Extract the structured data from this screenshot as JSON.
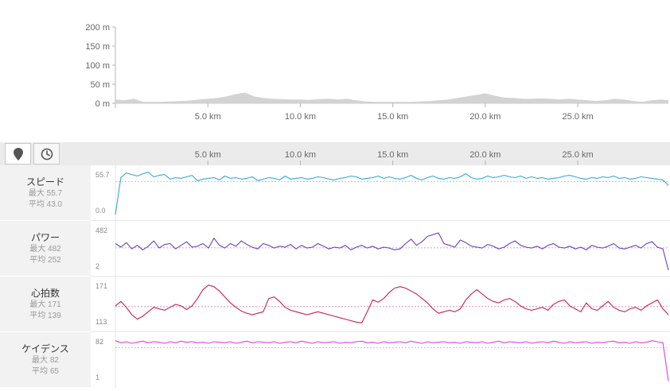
{
  "chart_data": [
    {
      "type": "area",
      "ylabel": "",
      "xlabel": "",
      "y_tick_labels": [
        "200 m",
        "150 m",
        "100 m",
        "50 m",
        "0 m"
      ],
      "y_ticks": [
        200,
        150,
        100,
        50,
        0
      ],
      "ylim": [
        0,
        200
      ],
      "x_tick_labels": [
        "5.0 km",
        "10.0 km",
        "15.0 km",
        "20.0 km",
        "25.0 km"
      ],
      "x_ticks": [
        5,
        10,
        15,
        20,
        25
      ],
      "xlim": [
        0,
        29.9
      ],
      "x": [
        0,
        0.5,
        1,
        1.5,
        2,
        2.5,
        3,
        3.5,
        4,
        4.5,
        5,
        5.5,
        6,
        6.5,
        7,
        7.5,
        8,
        8.5,
        9,
        9.5,
        10,
        10.5,
        11,
        11.5,
        12,
        12.5,
        13,
        13.5,
        14,
        14.5,
        15,
        15.5,
        16,
        16.5,
        17,
        17.5,
        18,
        18.5,
        19,
        19.5,
        20,
        20.5,
        21,
        21.5,
        22,
        22.5,
        23,
        23.5,
        24,
        24.5,
        25,
        25.5,
        26,
        26.5,
        27,
        27.5,
        28,
        28.5,
        29,
        29.5,
        29.9
      ],
      "values": [
        10,
        8,
        12,
        4,
        4,
        4,
        5,
        6,
        7,
        10,
        12,
        14,
        18,
        24,
        28,
        18,
        14,
        12,
        11,
        10,
        10,
        9,
        11,
        12,
        10,
        12,
        8,
        5,
        4,
        4,
        4,
        4,
        4,
        5,
        6,
        8,
        10,
        14,
        18,
        22,
        26,
        20,
        15,
        14,
        12,
        12,
        13,
        12,
        10,
        12,
        10,
        8,
        6,
        8,
        12,
        10,
        6,
        4,
        8,
        10,
        8
      ],
      "grid": false
    },
    {
      "type": "line",
      "panel": "stream",
      "x_tick_labels": [
        "5.0 km",
        "10.0 km",
        "15.0 km",
        "20.0 km",
        "25.0 km"
      ],
      "x_ticks": [
        5,
        10,
        15,
        20,
        25
      ],
      "xlim": [
        0,
        29.9
      ],
      "series": [
        {
          "name": "スピード",
          "color": "#33a8d8",
          "ylim": [
            0.0,
            55.7
          ],
          "mean": 43.0,
          "values": [
            0,
            48,
            54,
            52,
            50,
            53,
            55,
            49,
            51,
            52,
            46,
            48,
            47,
            49,
            51,
            44,
            46,
            47,
            48,
            45,
            50,
            47,
            48,
            46,
            47,
            49,
            44,
            46,
            48,
            47,
            45,
            50,
            46,
            47,
            48,
            46,
            47,
            49,
            48,
            46,
            45,
            47,
            48,
            50,
            49,
            46,
            47,
            48,
            50,
            47,
            49,
            47,
            46,
            48,
            51,
            47,
            45,
            48,
            50,
            47,
            46,
            48,
            47,
            49,
            53,
            48,
            46,
            47,
            50,
            48,
            49,
            51,
            49,
            48,
            50,
            47,
            49,
            47,
            48,
            46,
            47,
            48,
            50,
            51,
            49,
            47,
            46,
            48,
            47,
            49,
            48,
            50,
            47,
            48,
            46,
            47,
            49,
            48,
            47,
            46,
            45,
            38
          ]
        },
        {
          "name": "パワー",
          "color": "#6c3fc6",
          "ylim": [
            2,
            482
          ],
          "mean": 252,
          "values": [
            300,
            260,
            310,
            240,
            280,
            230,
            270,
            330,
            250,
            290,
            300,
            240,
            280,
            320,
            260,
            270,
            300,
            250,
            360,
            280,
            250,
            300,
            270,
            330,
            290,
            260,
            240,
            300,
            280,
            250,
            270,
            260,
            290,
            240,
            280,
            250,
            260,
            300,
            270,
            240,
            260,
            250,
            280,
            230,
            260,
            280,
            250,
            270,
            240,
            260,
            250,
            230,
            240,
            300,
            350,
            280,
            320,
            380,
            400,
            420,
            300,
            280,
            260,
            340,
            310,
            270,
            260,
            250,
            290,
            270,
            240,
            260,
            300,
            330,
            280,
            260,
            250,
            270,
            240,
            280,
            300,
            260,
            250,
            270,
            240,
            260,
            230,
            280,
            260,
            250,
            270,
            300,
            250,
            240,
            260,
            280,
            250,
            300,
            320,
            260,
            240,
            2
          ]
        },
        {
          "name": "心拍数",
          "color": "#c81e5a",
          "ylim": [
            113,
            171
          ],
          "mean": 139,
          "values": [
            140,
            146,
            138,
            128,
            122,
            126,
            132,
            138,
            136,
            134,
            138,
            142,
            140,
            135,
            140,
            150,
            162,
            168,
            166,
            160,
            152,
            144,
            138,
            133,
            130,
            128,
            130,
            132,
            150,
            152,
            146,
            138,
            134,
            132,
            130,
            128,
            130,
            132,
            130,
            128,
            126,
            124,
            122,
            120,
            118,
            117,
            132,
            148,
            145,
            150,
            158,
            164,
            166,
            164,
            160,
            156,
            150,
            144,
            136,
            130,
            132,
            134,
            132,
            136,
            148,
            156,
            162,
            156,
            150,
            146,
            144,
            148,
            150,
            146,
            140,
            136,
            134,
            136,
            138,
            134,
            142,
            146,
            148,
            140,
            136,
            132,
            144,
            136,
            134,
            140,
            146,
            138,
            134,
            132,
            136,
            138,
            134,
            140,
            144,
            148,
            136,
            128
          ]
        },
        {
          "name": "ケイデンス",
          "color": "#e23de6",
          "ylim": [
            1,
            82
          ],
          "mean": 65,
          "values": [
            78,
            74,
            76,
            73,
            75,
            77,
            74,
            76,
            75,
            73,
            76,
            74,
            77,
            75,
            76,
            74,
            75,
            73,
            76,
            75,
            74,
            76,
            73,
            75,
            77,
            74,
            76,
            75,
            74,
            76,
            73,
            75,
            76,
            74,
            77,
            75,
            73,
            76,
            74,
            75,
            76,
            73,
            75,
            74,
            76,
            77,
            74,
            75,
            73,
            76,
            74,
            75,
            76,
            74,
            77,
            75,
            73,
            76,
            74,
            75,
            76,
            74,
            75,
            73,
            76,
            75,
            74,
            76,
            73,
            75,
            77,
            74,
            76,
            75,
            74,
            76,
            73,
            75,
            76,
            74,
            77,
            75,
            73,
            76,
            74,
            75,
            76,
            73,
            75,
            74,
            76,
            77,
            74,
            75,
            73,
            76,
            74,
            75,
            78,
            76,
            74,
            2
          ]
        }
      ]
    }
  ],
  "toolbar": {
    "map_pin_icon": "map-pin-icon",
    "clock_icon": "clock-icon"
  },
  "metrics": [
    {
      "name": "スピード",
      "max_label": "最大 55.7",
      "avg_label": "平均 43.0",
      "y_max_label": "55.7",
      "y_min_label": "0.0",
      "color": "#33a8d8"
    },
    {
      "name": "パワー",
      "max_label": "最大 482",
      "avg_label": "平均 252",
      "y_max_label": "482",
      "y_min_label": "2",
      "color": "#6c3fc6"
    },
    {
      "name": "心拍数",
      "max_label": "最大 171",
      "avg_label": "平均 139",
      "y_max_label": "171",
      "y_min_label": "113",
      "color": "#c81e5a"
    },
    {
      "name": "ケイデンス",
      "max_label": "最大 82",
      "avg_label": "平均 65",
      "y_max_label": "82",
      "y_min_label": "1",
      "color": "#e23de6"
    }
  ]
}
